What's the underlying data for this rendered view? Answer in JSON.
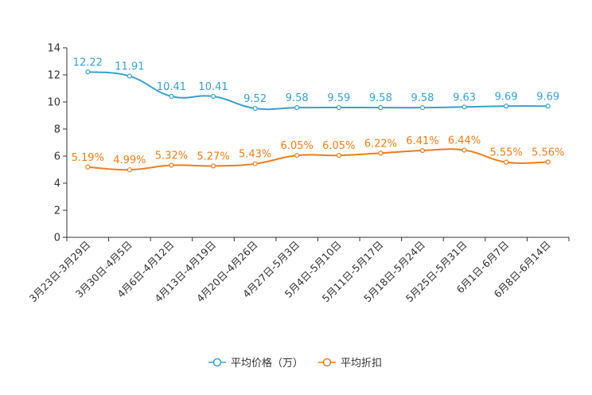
{
  "chart_data": {
    "type": "line",
    "categories": [
      "3月23日-3月29日",
      "3月30日-4月5日",
      "4月6日-4月12日",
      "4月13日-4月19日",
      "4月20日-4月26日",
      "4月27日-5月3日",
      "5月4日-5月10日",
      "5月11日-5月17日",
      "5月18日-5月24日",
      "5月25日-5月31日",
      "6月1日-6月7日",
      "6月8日-6月14日"
    ],
    "ylim": [
      0,
      14
    ],
    "yticks": [
      "0",
      "2",
      "4",
      "6",
      "8",
      "10",
      "12",
      "14"
    ],
    "series": [
      {
        "name": "平均价格（万）",
        "color": "#3a9fd0",
        "values": [
          12.22,
          11.91,
          10.41,
          10.41,
          9.52,
          9.58,
          9.59,
          9.58,
          9.58,
          9.63,
          9.69,
          9.69
        ],
        "labels": [
          "12.22",
          "11.91",
          "10.41",
          "10.41",
          "9.52",
          "9.58",
          "9.59",
          "9.58",
          "9.58",
          "9.63",
          "9.69",
          "9.69"
        ]
      },
      {
        "name": "平均折扣",
        "color": "#f07d1a",
        "values": [
          5.19,
          4.99,
          5.32,
          5.27,
          5.43,
          6.05,
          6.05,
          6.22,
          6.41,
          6.44,
          5.55,
          5.56
        ],
        "labels": [
          "5.19%",
          "4.99%",
          "5.32%",
          "5.27%",
          "5.43%",
          "6.05%",
          "6.05%",
          "6.22%",
          "6.41%",
          "6.44%",
          "5.55%",
          "5.56%"
        ]
      }
    ],
    "legend_position": "bottom-center"
  }
}
